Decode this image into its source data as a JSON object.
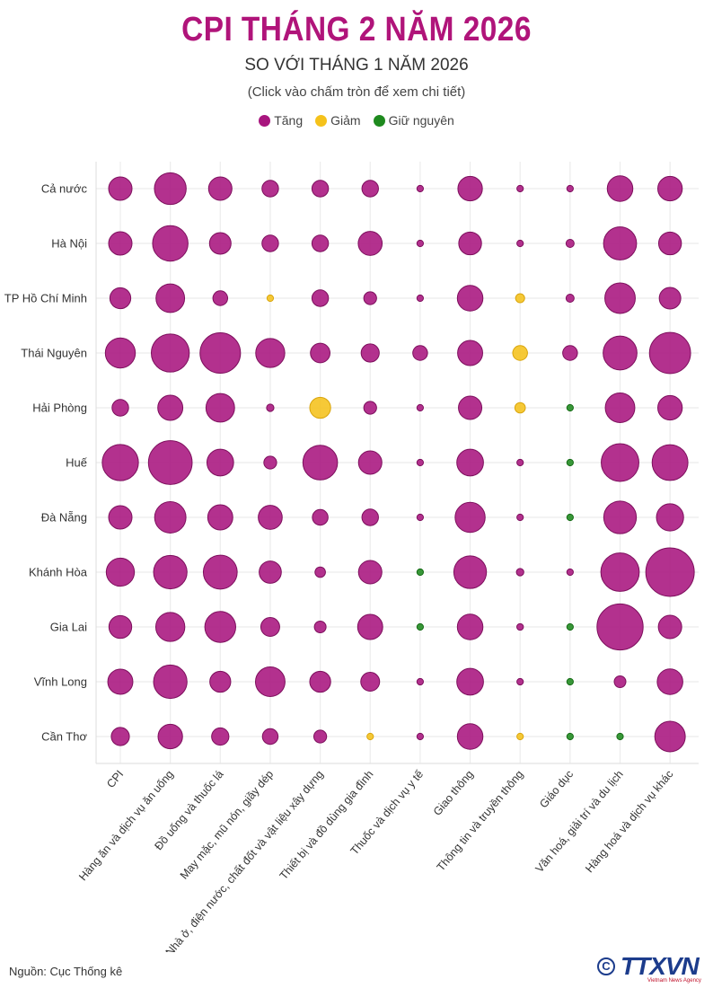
{
  "header": {
    "title": "CPI THÁNG 2 NĂM 2026",
    "subtitle": "SO VỚI THÁNG 1 NĂM 2026",
    "hint": "(Click vào chấm tròn để xem chi tiết)"
  },
  "legend": [
    {
      "label": "Tăng",
      "color": "#a8157e"
    },
    {
      "label": "Giảm",
      "color": "#f5c21b"
    },
    {
      "label": "Giữ nguyên",
      "color": "#1e8a1e"
    }
  ],
  "chart_data": {
    "type": "bubble-matrix",
    "size_unit": "relative magnitude of change",
    "regions": [
      "Cả nước",
      "Hà Nội",
      "TP Hồ Chí Minh",
      "Thái Nguyên",
      "Hải Phòng",
      "Huế",
      "Đà Nẵng",
      "Khánh Hòa",
      "Gia Lai",
      "Vĩnh Long",
      "Cần Thơ"
    ],
    "categories": [
      "CPI",
      "Hàng ăn và dịch vụ ăn uống",
      "Đồ uống và thuốc lá",
      "May mặc, mũ nón, giầy dép",
      "Nhà ở, điện nước, chất đốt và vật liệu xây dựng",
      "Thiết bị và đồ dùng gia đình",
      "Thuốc và dịch vụ y tế",
      "Giao thông",
      "Thông tin và truyền thông",
      "Giáo dục",
      "Văn hoá, giải trí và du lịch",
      "Hàng hoá và dịch vụ khác"
    ],
    "status_colors": {
      "up": "#a8157e",
      "down": "#f5c21b",
      "same": "#1e8a1e"
    },
    "magnitude": [
      [
        1.0,
        1.85,
        1.0,
        0.5,
        0.5,
        0.5,
        0.05,
        1.1,
        0.03,
        0.05,
        1.2,
        1.1
      ],
      [
        1.0,
        2.3,
        0.85,
        0.5,
        0.5,
        1.05,
        0.03,
        0.95,
        0.03,
        0.12,
        2.0,
        0.95
      ],
      [
        0.8,
        1.5,
        0.4,
        0.05,
        0.5,
        0.3,
        0.03,
        1.2,
        0.15,
        0.12,
        1.7,
        0.85
      ],
      [
        1.65,
        2.65,
        3.0,
        1.55,
        0.7,
        0.6,
        0.4,
        1.15,
        0.4,
        0.4,
        2.1,
        3.1
      ],
      [
        0.5,
        1.15,
        1.5,
        0.1,
        0.8,
        0.3,
        0.03,
        1.0,
        0.2,
        0.05,
        1.6,
        1.1
      ],
      [
        2.4,
        3.5,
        1.3,
        0.3,
        2.2,
        1.0,
        0.03,
        1.3,
        0.06,
        0.04,
        2.6,
        2.35
      ],
      [
        1.0,
        1.8,
        1.15,
        1.05,
        0.45,
        0.5,
        0.03,
        1.65,
        0.06,
        0.04,
        1.95,
        1.35
      ],
      [
        1.45,
        2.05,
        2.1,
        0.9,
        0.2,
        1.0,
        0.04,
        1.95,
        0.1,
        0.03,
        2.7,
        4.3
      ],
      [
        0.95,
        1.55,
        1.75,
        0.65,
        0.25,
        1.15,
        0.04,
        1.2,
        0.08,
        0.03,
        3.9,
        1.0
      ],
      [
        1.15,
        2.05,
        0.8,
        1.6,
        0.8,
        0.65,
        0.03,
        1.3,
        0.03,
        0.04,
        0.25,
        1.2
      ],
      [
        0.6,
        1.1,
        0.55,
        0.45,
        0.3,
        0.05,
        0.03,
        1.2,
        0.04,
        0.04,
        0.04,
        1.7
      ]
    ],
    "status": [
      [
        "up",
        "up",
        "up",
        "up",
        "up",
        "up",
        "up",
        "up",
        "up",
        "up",
        "up",
        "up"
      ],
      [
        "up",
        "up",
        "up",
        "up",
        "up",
        "up",
        "up",
        "up",
        "up",
        "up",
        "up",
        "up"
      ],
      [
        "up",
        "up",
        "up",
        "down",
        "up",
        "up",
        "up",
        "up",
        "down",
        "up",
        "up",
        "up"
      ],
      [
        "up",
        "up",
        "up",
        "up",
        "up",
        "up",
        "up",
        "up",
        "down",
        "up",
        "up",
        "up"
      ],
      [
        "up",
        "up",
        "up",
        "up",
        "down",
        "up",
        "up",
        "up",
        "down",
        "same",
        "up",
        "up"
      ],
      [
        "up",
        "up",
        "up",
        "up",
        "up",
        "up",
        "up",
        "up",
        "up",
        "same",
        "up",
        "up"
      ],
      [
        "up",
        "up",
        "up",
        "up",
        "up",
        "up",
        "up",
        "up",
        "up",
        "same",
        "up",
        "up"
      ],
      [
        "up",
        "up",
        "up",
        "up",
        "up",
        "up",
        "same",
        "up",
        "up",
        "up",
        "up",
        "up"
      ],
      [
        "up",
        "up",
        "up",
        "up",
        "up",
        "up",
        "same",
        "up",
        "up",
        "same",
        "up",
        "up"
      ],
      [
        "up",
        "up",
        "up",
        "up",
        "up",
        "up",
        "up",
        "up",
        "up",
        "same",
        "up",
        "up"
      ],
      [
        "up",
        "up",
        "up",
        "up",
        "up",
        "down",
        "up",
        "up",
        "down",
        "same",
        "same",
        "up"
      ]
    ]
  },
  "footer": {
    "source": "Nguồn: Cục Thống kê",
    "logo_text": "TTXVN",
    "logo_sub": "Vietnam News Agency",
    "copyright_symbol": "C"
  }
}
